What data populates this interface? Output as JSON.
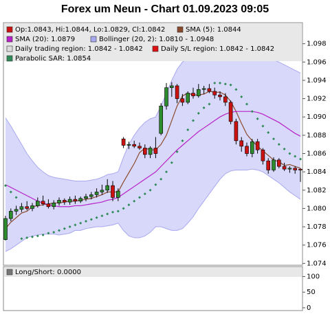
{
  "chart_data": [
    {
      "type": "candlestick",
      "title": "Forex um Neun - Chart 01.09.2023 09:05",
      "ylim": [
        1.0738,
        1.1003
      ],
      "yticks": [
        1.074,
        1.076,
        1.078,
        {
          "value": 1.08,
          "label": "1.080"
        },
        1.082,
        1.084,
        1.086,
        1.088,
        {
          "value": 1.09,
          "label": "1.090"
        },
        1.092,
        1.094,
        1.096,
        1.098
      ],
      "grid": false,
      "series": [
        {
          "type": "candlestick",
          "name": "Op:1.0843, Hi:1.0844, Lo:1.0829, Cl:1.0842",
          "color": "#cc1111",
          "up_color": "#2e8b2e",
          "down_color": "#cc1111",
          "open": [
            1.0766,
            1.0789,
            1.0797,
            1.0799,
            1.0802,
            1.08,
            1.0803,
            1.0808,
            1.0805,
            1.0802,
            1.0806,
            1.0809,
            1.0807,
            1.081,
            1.0808,
            1.0811,
            1.0813,
            1.0815,
            1.0818,
            1.082,
            1.0825,
            1.0812,
            1.0876,
            1.0869,
            1.087,
            1.0868,
            1.0866,
            1.0859,
            1.0866,
            1.0882,
            1.0912,
            1.0932,
            1.0934,
            1.092,
            1.0916,
            1.0926,
            1.0923,
            1.093,
            1.0931,
            1.0928,
            1.0924,
            1.0922,
            1.0916,
            1.0895,
            1.0874,
            1.0868,
            1.086,
            1.0873,
            1.0864,
            1.0852,
            1.0842,
            1.0853,
            1.0846,
            1.0843,
            1.0844,
            1.0843
          ],
          "high": [
            1.0792,
            1.08,
            1.0803,
            1.0806,
            1.0808,
            1.0806,
            1.0812,
            1.0814,
            1.081,
            1.0809,
            1.0812,
            1.0811,
            1.0813,
            1.0814,
            1.0813,
            1.0816,
            1.0818,
            1.0822,
            1.0826,
            1.0832,
            1.083,
            1.0822,
            1.0878,
            1.0873,
            1.0874,
            1.0872,
            1.087,
            1.0868,
            1.0878,
            1.0915,
            1.0937,
            1.0938,
            1.0936,
            1.0925,
            1.0928,
            1.0932,
            1.0936,
            1.0934,
            1.0936,
            1.0932,
            1.0928,
            1.0926,
            1.0918,
            1.0898,
            1.0878,
            1.0872,
            1.0876,
            1.0876,
            1.0866,
            1.0855,
            1.0856,
            1.0855,
            1.085,
            1.0846,
            1.0846,
            1.0844
          ],
          "low": [
            1.0765,
            1.0786,
            1.0793,
            1.0796,
            1.0798,
            1.0797,
            1.0801,
            1.0803,
            1.08,
            1.0799,
            1.0803,
            1.0804,
            1.0804,
            1.0805,
            1.0806,
            1.0808,
            1.081,
            1.0812,
            1.0815,
            1.0817,
            1.0808,
            1.0808,
            1.0866,
            1.0865,
            1.0866,
            1.0864,
            1.0855,
            1.0855,
            1.0855,
            1.088,
            1.0908,
            1.0922,
            1.0915,
            1.0912,
            1.0914,
            1.092,
            1.0921,
            1.0925,
            1.0926,
            1.092,
            1.0918,
            1.0912,
            1.0892,
            1.087,
            1.0862,
            1.0857,
            1.0856,
            1.086,
            1.0848,
            1.0838,
            1.084,
            1.0844,
            1.0841,
            1.0839,
            1.0838,
            1.0829
          ],
          "close": [
            1.0789,
            1.0797,
            1.0799,
            1.0802,
            1.08,
            1.0803,
            1.0808,
            1.0805,
            1.0802,
            1.0806,
            1.0809,
            1.0807,
            1.081,
            1.0808,
            1.0811,
            1.0813,
            1.0815,
            1.0818,
            1.082,
            1.0825,
            1.0812,
            1.0819,
            1.0869,
            1.087,
            1.0868,
            1.0866,
            1.0859,
            1.0866,
            1.086,
            1.0912,
            1.0932,
            1.0934,
            1.092,
            1.0916,
            1.0926,
            1.0923,
            1.093,
            1.0931,
            1.0928,
            1.0924,
            1.0922,
            1.0916,
            1.0895,
            1.0874,
            1.0868,
            1.086,
            1.0873,
            1.0864,
            1.0852,
            1.0842,
            1.0853,
            1.0846,
            1.0843,
            1.0844,
            1.0842,
            1.0842
          ]
        },
        {
          "type": "line",
          "name": "SMA (5): 1.0844",
          "color": "#8b4a2b",
          "values": [
            1.0778,
            1.0785,
            1.079,
            1.0795,
            1.0797,
            1.0802,
            1.0803,
            1.0804,
            1.0805,
            1.0806,
            1.0806,
            1.0807,
            1.0808,
            1.0808,
            1.0809,
            1.081,
            1.0811,
            1.0813,
            1.0815,
            1.0818,
            1.0818,
            1.0818,
            1.0829,
            1.0839,
            1.0849,
            1.0861,
            1.0866,
            1.0864,
            1.0864,
            1.087,
            1.088,
            1.0896,
            1.0912,
            1.0923,
            1.0926,
            1.0924,
            1.0924,
            1.0925,
            1.0928,
            1.0927,
            1.0927,
            1.0924,
            1.0917,
            1.0906,
            1.0893,
            1.0881,
            1.0874,
            1.0868,
            1.0863,
            1.0858,
            1.0853,
            1.0851,
            1.0847,
            1.0848,
            1.0846,
            1.0844
          ]
        },
        {
          "type": "line",
          "name": "SMA (20): 1.0879",
          "color": "#b820c8",
          "values": [
            1.0826,
            1.0823,
            1.082,
            1.0817,
            1.0814,
            1.0811,
            1.0808,
            1.0806,
            1.0804,
            1.0803,
            1.0802,
            1.0802,
            1.0802,
            1.0803,
            1.0803,
            1.0804,
            1.0805,
            1.0806,
            1.0807,
            1.0809,
            1.081,
            1.0812,
            1.0816,
            1.082,
            1.0824,
            1.0828,
            1.0832,
            1.0836,
            1.084,
            1.0846,
            1.0852,
            1.0858,
            1.0864,
            1.0869,
            1.0874,
            1.0879,
            1.0884,
            1.0888,
            1.0892,
            1.0896,
            1.09,
            1.0903,
            1.0905,
            1.0906,
            1.0906,
            1.0906,
            1.0906,
            1.0905,
            1.0903,
            1.09,
            1.0897,
            1.0894,
            1.089,
            1.0886,
            1.0882,
            1.0879
          ]
        },
        {
          "type": "band",
          "name": "Bollinger (20, 2): 1.0810 - 1.0948",
          "color": "#a8a8f0",
          "upper": [
            1.0899,
            1.089,
            1.088,
            1.087,
            1.086,
            1.0852,
            1.0845,
            1.084,
            1.0836,
            1.0834,
            1.0833,
            1.0832,
            1.0831,
            1.083,
            1.083,
            1.083,
            1.0831,
            1.0832,
            1.0834,
            1.0837,
            1.0838,
            1.084,
            1.0856,
            1.087,
            1.088,
            1.0888,
            1.0894,
            1.0898,
            1.09,
            1.0912,
            1.0926,
            1.094,
            1.0952,
            1.096,
            1.0964,
            1.0967,
            1.0968,
            1.0968,
            1.0968,
            1.0968,
            1.0968,
            1.0968,
            1.0969,
            1.097,
            1.097,
            1.097,
            1.0969,
            1.0968,
            1.0966,
            1.0964,
            1.0962,
            1.096,
            1.0957,
            1.0954,
            1.0951,
            1.0948
          ],
          "lower": [
            1.0753,
            1.0756,
            1.076,
            1.0764,
            1.0768,
            1.077,
            1.0771,
            1.0772,
            1.0772,
            1.0772,
            1.0771,
            1.0772,
            1.0773,
            1.0776,
            1.0776,
            1.0778,
            1.0779,
            1.078,
            1.078,
            1.0781,
            1.0782,
            1.0784,
            1.0776,
            1.077,
            1.0768,
            1.0768,
            1.077,
            1.0774,
            1.078,
            1.078,
            1.0778,
            1.0776,
            1.0776,
            1.0778,
            1.0784,
            1.0791,
            1.08,
            1.0808,
            1.0816,
            1.0824,
            1.0832,
            1.0838,
            1.0841,
            1.0842,
            1.0842,
            1.0842,
            1.0843,
            1.0842,
            1.084,
            1.0836,
            1.0832,
            1.0828,
            1.0823,
            1.0818,
            1.0814,
            1.081
          ]
        },
        {
          "type": "region",
          "name": "Daily trading region: 1.0842 - 1.0842",
          "color": "#dddddd"
        },
        {
          "type": "region",
          "name": "Daily S/L region: 1.0842 - 1.0842",
          "color": "#dd1111"
        },
        {
          "type": "dots",
          "name": "Parabolic SAR: 1.0854",
          "color": "#2e8b57",
          "values": [
            1.0825,
            1.0818,
            1.0812,
            1.0767,
            1.0768,
            1.0769,
            1.077,
            1.0771,
            1.0773,
            1.0774,
            1.0776,
            1.0778,
            1.078,
            1.0782,
            1.0784,
            1.0786,
            1.0788,
            1.079,
            1.0792,
            1.0794,
            1.0796,
            1.0797,
            1.08,
            1.0804,
            1.0808,
            1.0812,
            1.0816,
            1.082,
            1.0826,
            1.0832,
            1.084,
            1.085,
            1.0862,
            1.0874,
            1.0886,
            1.0896,
            1.0904,
            1.091,
            1.0914,
            1.0937,
            1.0937,
            1.0936,
            1.0935,
            1.093,
            1.0922,
            1.0914,
            1.0906,
            1.0898,
            1.089,
            1.0883,
            1.0876,
            1.087,
            1.0865,
            1.086,
            1.0857,
            1.0854
          ]
        }
      ]
    },
    {
      "type": "line",
      "ylim": [
        -9,
        132
      ],
      "yticks": [
        0,
        50,
        100
      ],
      "grid": false,
      "series": [
        {
          "type": "line",
          "name": "Long/Short: 0.0000",
          "color": "#777777"
        }
      ]
    }
  ]
}
